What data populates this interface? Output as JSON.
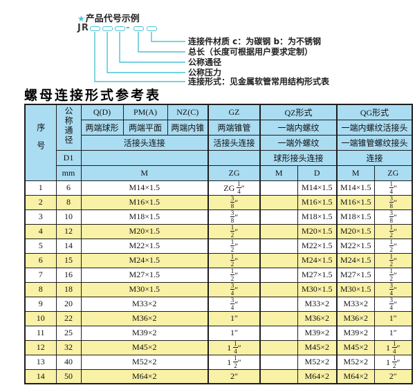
{
  "diagram": {
    "star": "★",
    "heading": "产品代号示例",
    "code_prefix": "JR",
    "code_dash": "-",
    "labels": [
      "连接件材质  c：为碳钢  b：为不锈钢",
      "总长（长度可根据用户要求定制）",
      "公称通径",
      "公称压力",
      "连接形式：见金属软管常用结构形式表"
    ]
  },
  "table": {
    "title": "螺母连接形式参考表",
    "header": {
      "col_seq": "序号",
      "col_diameter": "公称通径",
      "col_d1": "D1",
      "col_mm": "mm",
      "q_code": "Q(D)",
      "q_desc": "两端球形",
      "pm_code": "PM(A)",
      "pm_desc": "两端平面",
      "nz_code": "NZ(C)",
      "nz_desc": "两端内锥",
      "gz_code": "GZ",
      "gz_desc": "两端锥管",
      "left_row3": "活接头连接",
      "gz_row3": "活接头连接",
      "left_unit": "M",
      "gz_unit": "ZG",
      "qz_title": "QZ形式",
      "qz_row2": "一端内螺纹",
      "qz_row3": "一端外螺纹",
      "qz_row4": "球形接头连接",
      "qz_m": "M",
      "qz_d": "D",
      "qg_title": "QG形式",
      "qg_row2": "一端内螺纹活接头",
      "qg_row3": "一端锥管螺纹接头",
      "qg_row4": "连接",
      "qg_m": "M",
      "qg_zg": "ZG"
    },
    "rows": [
      {
        "seq": "1",
        "mm": "6",
        "m": "M14×1.5",
        "gz_zg": "ZG 1/4″",
        "qz_m": "",
        "qz_d": "M14×1.5",
        "qg_m": "M14×1.5",
        "qg_zg": "1/4″"
      },
      {
        "seq": "2",
        "mm": "8",
        "m": "M16×1.5",
        "gz_zg": "3/8″",
        "qz_m": "",
        "qz_d": "M16×1.5",
        "qg_m": "M16×1.5",
        "qg_zg": "3/8″"
      },
      {
        "seq": "3",
        "mm": "10",
        "m": "M18×1.5",
        "gz_zg": "3/8″",
        "qz_m": "",
        "qz_d": "M18×1.5",
        "qg_m": "M18×1.5",
        "qg_zg": "3/8″"
      },
      {
        "seq": "4",
        "mm": "12",
        "m": "M20×1.5",
        "gz_zg": "1/2″",
        "qz_m": "",
        "qz_d": "M20×1.5",
        "qg_m": "M20×1.5",
        "qg_zg": "1/2″"
      },
      {
        "seq": "5",
        "mm": "14",
        "m": "M22×1.5",
        "gz_zg": "1/2″",
        "qz_m": "",
        "qz_d": "M22×1.5",
        "qg_m": "M22×1.5",
        "qg_zg": "1/2″"
      },
      {
        "seq": "6",
        "mm": "15",
        "m": "M24×1.5",
        "gz_zg": "1/2″",
        "qz_m": "",
        "qz_d": "M24×1.5",
        "qg_m": "M24×1.5",
        "qg_zg": "1/2″"
      },
      {
        "seq": "7",
        "mm": "16",
        "m": "M27×1.5",
        "gz_zg": "1/2″",
        "qz_m": "",
        "qz_d": "M27×1.5",
        "qg_m": "M27×1.5",
        "qg_zg": "1/2″"
      },
      {
        "seq": "8",
        "mm": "18",
        "m": "M30×1.5",
        "gz_zg": "3/4″",
        "qz_m": "",
        "qz_d": "M30×1.5",
        "qg_m": "M30×1.5",
        "qg_zg": "3/4″"
      },
      {
        "seq": "9",
        "mm": "20",
        "m": "M33×2",
        "gz_zg": "3/4″",
        "qz_m": "",
        "qz_d": "M33×2",
        "qg_m": "M33×2",
        "qg_zg": "3/4″"
      },
      {
        "seq": "10",
        "mm": "22",
        "m": "M36×2",
        "gz_zg": "1″",
        "qz_m": "",
        "qz_d": "M36×2",
        "qg_m": "M36×2",
        "qg_zg": "1″"
      },
      {
        "seq": "11",
        "mm": "25",
        "m": "M39×2",
        "gz_zg": "1″",
        "qz_m": "",
        "qz_d": "M39×2",
        "qg_m": "M39×2",
        "qg_zg": "1″"
      },
      {
        "seq": "12",
        "mm": "32",
        "m": "M45×2",
        "gz_zg": "1 1/4″",
        "qz_m": "",
        "qz_d": "M45×2",
        "qg_m": "M45×2",
        "qg_zg": "1 1/4″"
      },
      {
        "seq": "13",
        "mm": "40",
        "m": "M52×2",
        "gz_zg": "1 1/2″",
        "qz_m": "",
        "qz_d": "M52×2",
        "qg_m": "M52×2",
        "qg_zg": "1 1/2″"
      },
      {
        "seq": "14",
        "mm": "50",
        "m": "M64×2",
        "gz_zg": "2″",
        "qz_m": "",
        "qz_d": "M64×2",
        "qg_m": "M64×2",
        "qg_zg": "2″"
      }
    ]
  },
  "colors": {
    "header_blue": "#aadcf2",
    "row_yellow": "#f8f1a6",
    "diagram_cyan": "#49c3d6",
    "border": "#1c1c1c"
  }
}
